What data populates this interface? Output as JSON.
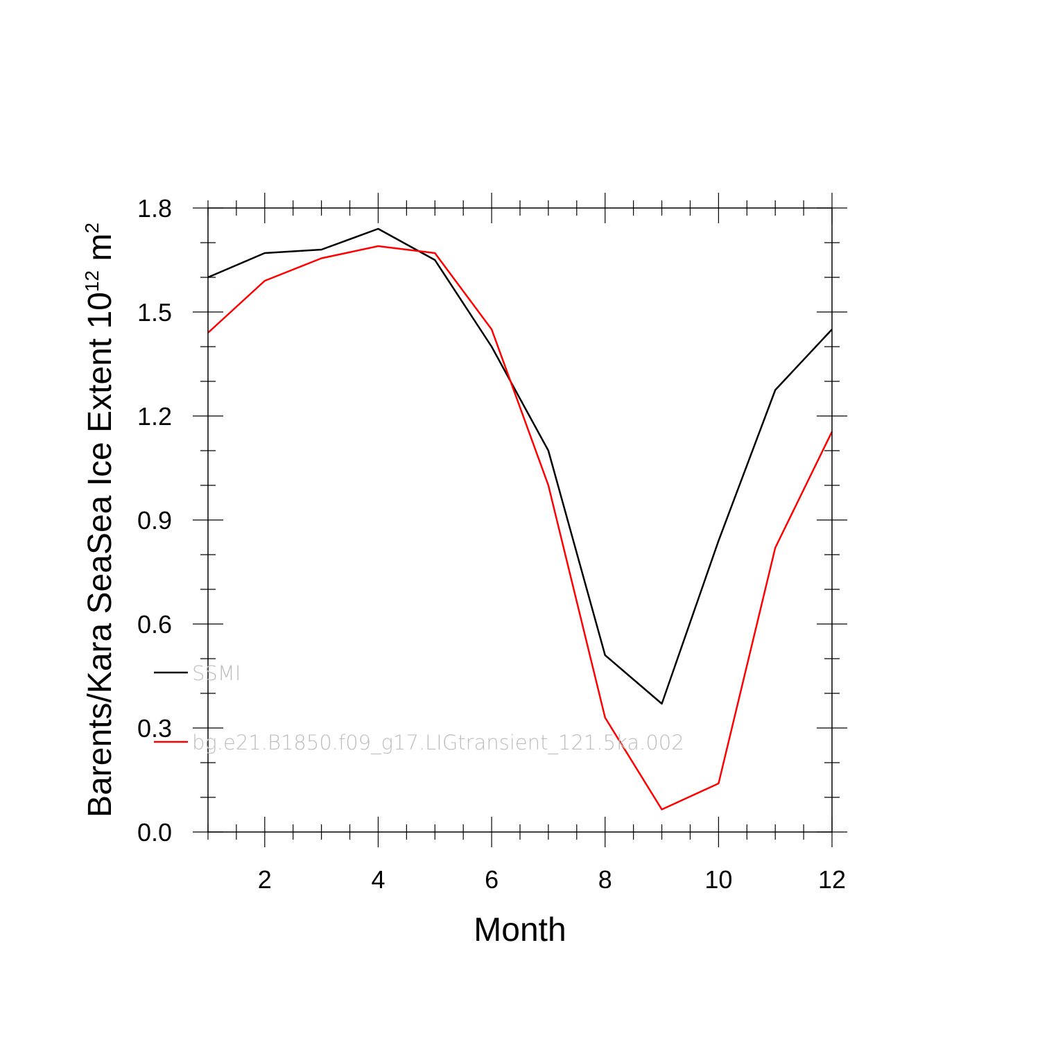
{
  "chart_data": {
    "type": "line",
    "xlabel": "Month",
    "ylabel": {
      "text": "Barents/Kara SeaSea Ice Extent 10",
      "superscript1": "12",
      "unit": " m",
      "superscript2": "2"
    },
    "xlim": [
      1,
      12
    ],
    "ylim": [
      0,
      1.8
    ],
    "x_ticks": [
      2,
      4,
      6,
      8,
      10,
      12
    ],
    "x_tick_labels": [
      "2",
      "4",
      "6",
      "8",
      "10",
      "12"
    ],
    "y_ticks": [
      0,
      0.3,
      0.6,
      0.9,
      1.2,
      1.5,
      1.8
    ],
    "y_tick_labels": [
      "0.0",
      "0.3",
      "0.6",
      "0.9",
      "1.2",
      "1.5",
      "1.8"
    ],
    "x": [
      1,
      2,
      3,
      4,
      5,
      6,
      7,
      8,
      9,
      10,
      11,
      12
    ],
    "series": [
      {
        "name": "SSMI",
        "color": "#000000",
        "values": [
          1.6,
          1.67,
          1.68,
          1.74,
          1.65,
          1.4,
          1.1,
          0.51,
          0.37,
          0.84,
          1.275,
          1.45
        ]
      },
      {
        "name": "bg.e21.B1850.f09_g17.LIGtransient_121.5ka.002",
        "color": "#ff0000",
        "values": [
          1.44,
          1.59,
          1.655,
          1.69,
          1.67,
          1.45,
          1.0,
          0.33,
          0.065,
          0.14,
          0.82,
          1.155
        ]
      }
    ],
    "legend_placement": "lower-left inside",
    "grid": false
  }
}
